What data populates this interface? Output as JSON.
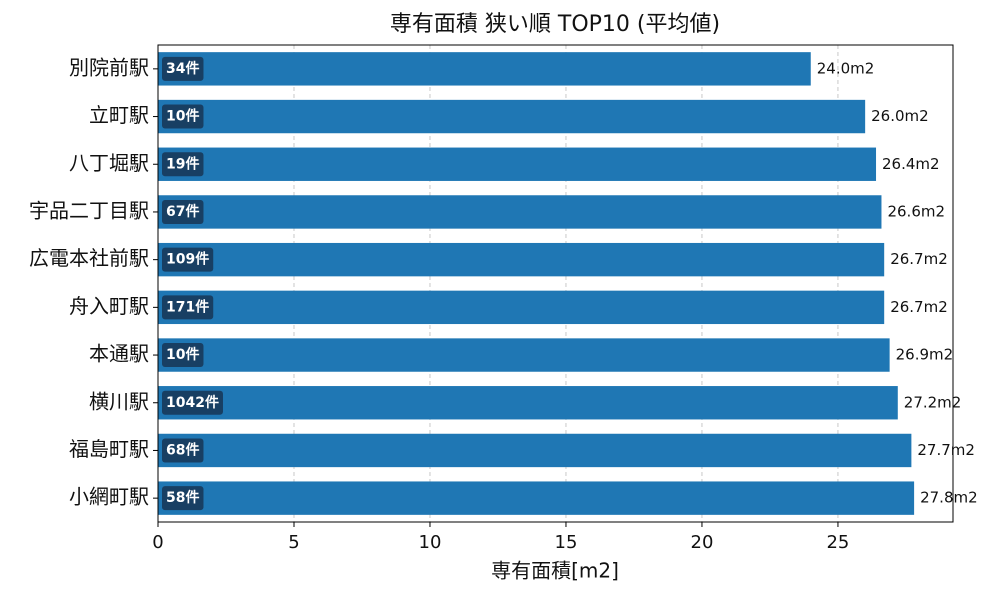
{
  "chart_data": {
    "type": "barh",
    "title": "専有面積 狭い順 TOP10 (平均値)",
    "x_label": "専有面積[m2]",
    "categories": [
      "別院前駅",
      "立町駅",
      "八丁堀駅",
      "宇品二丁目駅",
      "広電本社前駅",
      "舟入町駅",
      "本通駅",
      "横川駅",
      "福島町駅",
      "小網町駅"
    ],
    "values": [
      24.0,
      26.0,
      26.4,
      26.6,
      26.7,
      26.7,
      26.9,
      27.2,
      27.7,
      27.8
    ],
    "value_labels": [
      "24.0m2",
      "26.0m2",
      "26.4m2",
      "26.6m2",
      "26.7m2",
      "26.7m2",
      "26.9m2",
      "27.2m2",
      "27.7m2",
      "27.8m2"
    ],
    "count_labels": [
      "34件",
      "10件",
      "19件",
      "67件",
      "109件",
      "171件",
      "10件",
      "1042件",
      "68件",
      "58件"
    ],
    "color": "#1f77b4",
    "xlim": [
      0,
      29.23
    ],
    "xticks": [
      0,
      5,
      10,
      15,
      20,
      25
    ],
    "grid": true
  }
}
